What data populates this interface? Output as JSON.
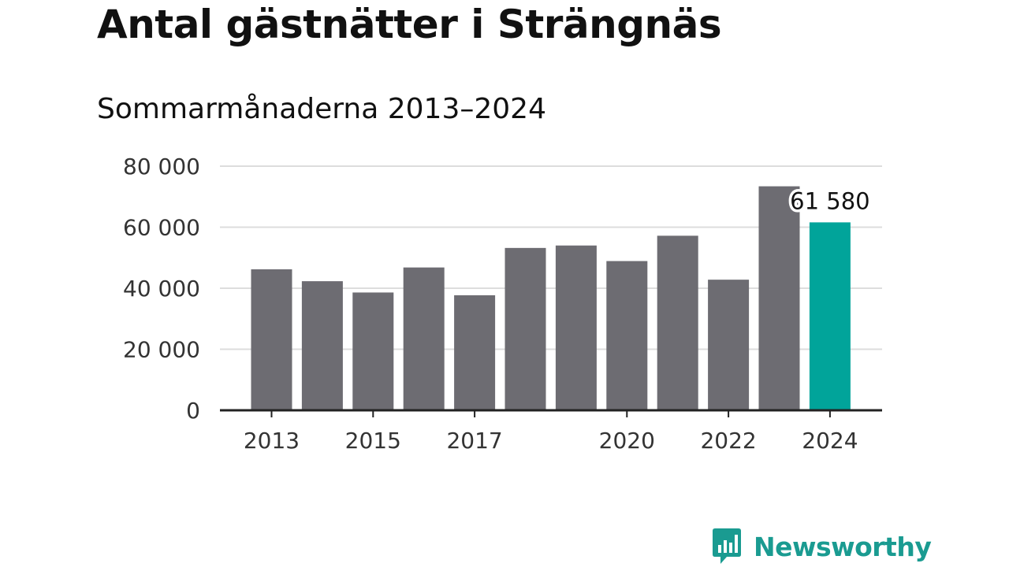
{
  "title": "Antal gästnätter i Strängnäs",
  "subtitle": "Sommarmånaderna 2013–2024",
  "brand": {
    "name": "Newsworthy",
    "color": "#1a9b91",
    "icon": "newsworthy-bar-chart-icon"
  },
  "colors": {
    "bar": "#6d6c72",
    "highlight": "#01a49a",
    "grid": "#dddddd",
    "axis": "#222222"
  },
  "chart_data": {
    "type": "bar",
    "title": "Antal gästnätter i Strängnäs",
    "subtitle": "Sommarmånaderna 2013–2024",
    "xlabel": "",
    "ylabel": "",
    "categories": [
      "2013",
      "2014",
      "2015",
      "2016",
      "2017",
      "2018",
      "2019",
      "2020",
      "2021",
      "2022",
      "2023",
      "2024"
    ],
    "values": [
      46200,
      42300,
      38600,
      46800,
      37700,
      53200,
      54000,
      48900,
      57200,
      42800,
      73400,
      61580
    ],
    "highlight_index": 11,
    "ylim": [
      0,
      80000
    ],
    "yticks": [
      0,
      20000,
      40000,
      60000,
      80000
    ],
    "ytick_labels": [
      "0",
      "20 000",
      "40 000",
      "60 000",
      "80 000"
    ],
    "xtick_labels": [
      "2013",
      "2015",
      "2017",
      "2020",
      "2022",
      "2024"
    ],
    "data_label": {
      "category": "2024",
      "text": "61 580"
    },
    "grid": true,
    "legend": "none"
  }
}
